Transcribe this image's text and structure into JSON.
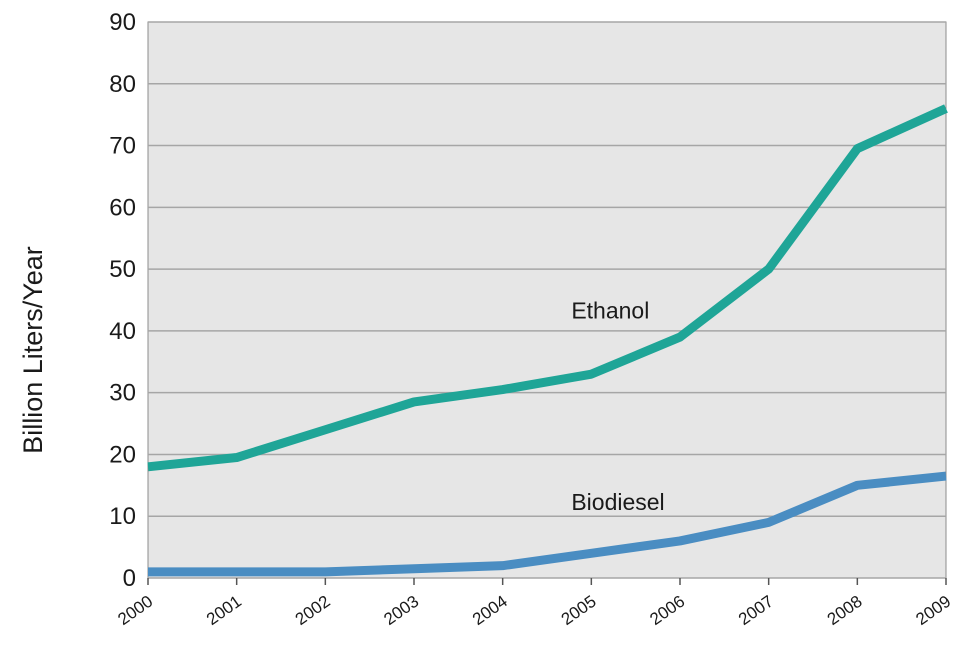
{
  "chart_data": {
    "type": "line",
    "title": "",
    "xlabel": "",
    "ylabel": "Billion Liters/Year",
    "x": [
      "2000",
      "2001",
      "2002",
      "2003",
      "2004",
      "2005",
      "2006",
      "2007",
      "2008",
      "2009"
    ],
    "y_ticks": [
      "0",
      "10",
      "20",
      "30",
      "40",
      "50",
      "60",
      "70",
      "80",
      "90"
    ],
    "ylim": [
      0,
      90
    ],
    "grid": true,
    "legend": "none (series labeled inline)",
    "series": [
      {
        "name": "Ethanol",
        "color": "#1fa597",
        "values": [
          18,
          19.5,
          24,
          28.5,
          30.5,
          33,
          39,
          50,
          69.5,
          76
        ]
      },
      {
        "name": "Biodiesel",
        "color": "#4a8dc2",
        "values": [
          1,
          1,
          1,
          1.5,
          2,
          4,
          6,
          9,
          15,
          16.5
        ]
      }
    ],
    "background_color": "#e6e6e6",
    "grid_color": "#a6a6a6"
  }
}
